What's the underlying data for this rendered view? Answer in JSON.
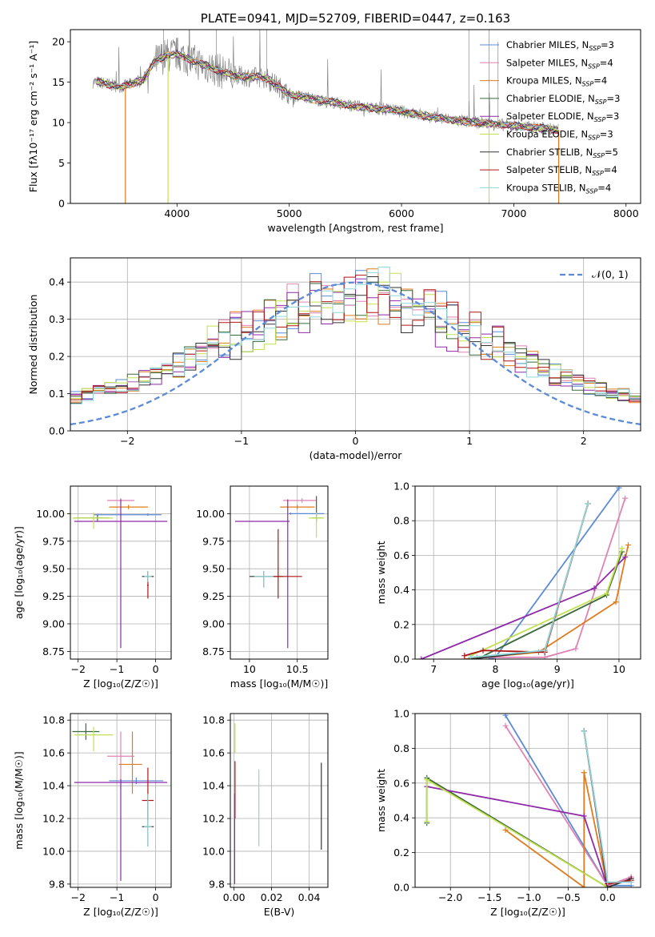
{
  "colors": {
    "Chabrier MILES": "#5b8bd6",
    "Salpeter MILES": "#e082b4",
    "Kroupa MILES": "#e07b1f",
    "Chabrier ELODIE": "#3a6a3a",
    "Salpeter ELODIE": "#8e2aa8",
    "Kroupa ELODIE": "#c2e050",
    "Chabrier STELIB": "#333333",
    "Salpeter STELIB": "#b01515",
    "Kroupa STELIB": "#8fd6d8",
    "data": "#888888",
    "normal": "#5b8bd6"
  },
  "chart_data": [
    {
      "type": "line",
      "id": "spectrum",
      "title": "PLATE=0941, MJD=52709, FIBERID=0447, z=0.163",
      "xlabel": "wavelength [Angstrom, rest frame]",
      "ylabel": "Flux [fλ10⁻¹⁷ erg cm⁻² s⁻¹ A⁻¹]",
      "xlim": [
        3050,
        8130
      ],
      "ylim": [
        0,
        21.5
      ],
      "xticks": [
        4000,
        5000,
        6000,
        7000,
        8000
      ],
      "yticks": [
        0,
        5,
        10,
        15,
        20
      ],
      "grid": false,
      "legend_position": "top-right",
      "legend": [
        {
          "name": "Chabrier MILES",
          "sub": "N",
          "subtext": "SSP",
          "tail": "=3"
        },
        {
          "name": "Salpeter MILES",
          "sub": "N",
          "subtext": "SSP",
          "tail": "=4"
        },
        {
          "name": "Kroupa MILES",
          "sub": "N",
          "subtext": "SSP",
          "tail": "=4"
        },
        {
          "name": "Chabrier ELODIE",
          "sub": "N",
          "subtext": "SSP",
          "tail": "=3"
        },
        {
          "name": "Salpeter ELODIE",
          "sub": "N",
          "subtext": "SSP",
          "tail": "=3"
        },
        {
          "name": "Kroupa ELODIE",
          "sub": "N",
          "subtext": "SSP",
          "tail": "=3"
        },
        {
          "name": "Chabrier STELIB",
          "sub": "N",
          "subtext": "SSP",
          "tail": "=5"
        },
        {
          "name": "Salpeter STELIB",
          "sub": "N",
          "subtext": "SSP",
          "tail": "=4"
        },
        {
          "name": "Kroupa STELIB",
          "sub": "N",
          "subtext": "SSP",
          "tail": "=4"
        }
      ],
      "continuum_x": [
        3300,
        3500,
        3700,
        3800,
        3900,
        4000,
        4200,
        4500,
        4800,
        5000,
        5300,
        5600,
        6000,
        6300,
        6600,
        7000,
        7400
      ],
      "continuum_y": [
        15.0,
        14.4,
        15.3,
        17.5,
        18.3,
        18.5,
        17.3,
        15.8,
        15.5,
        13.5,
        12.7,
        12.0,
        11.4,
        10.6,
        10.1,
        9.6,
        9.1
      ],
      "data_range": [
        3250,
        7400
      ],
      "drops": [
        {
          "series": "Kroupa MILES",
          "x": 3540
        },
        {
          "series": "Kroupa ELODIE",
          "x": 3920
        },
        {
          "series": "Kroupa ELODIE",
          "x": 6780
        },
        {
          "series": "Kroupa MILES",
          "x": 7400
        }
      ]
    },
    {
      "type": "histogram",
      "id": "residuals",
      "xlabel": "(data-model)/error",
      "ylabel": "Normed distribution",
      "xlim": [
        -2.5,
        2.5
      ],
      "ylim": [
        0,
        0.465
      ],
      "xticks": [
        -2,
        -1,
        0,
        1,
        2
      ],
      "yticks": [
        0.0,
        0.1,
        0.2,
        0.3,
        0.4
      ],
      "grid": true,
      "legend_position": "top-right",
      "legend": [
        {
          "name": "𝒩(0, 1)"
        }
      ],
      "bin_width": 0.1
    },
    {
      "type": "scatter",
      "id": "age_vs_Z",
      "xlabel": "Z [log₁₀(Z/Z☉)]",
      "ylabel": "age  [log₁₀(age/yr)]",
      "xlim": [
        -2.2,
        0.4
      ],
      "ylim": [
        8.68,
        10.25
      ],
      "xticks": [
        -2,
        -1,
        0
      ],
      "yticks": [
        8.75,
        9.0,
        9.25,
        9.5,
        9.75,
        10.0
      ],
      "grid": true,
      "points": [
        {
          "series": "Chabrier MILES",
          "x": -0.2,
          "y": 9.99,
          "xerr": [
            1.4,
            0.35
          ],
          "yerr": [
            0.01,
            0.01
          ]
        },
        {
          "series": "Salpeter MILES",
          "x": -0.9,
          "y": 10.12,
          "xerr": [
            0.35,
            0.35
          ],
          "yerr": [
            0.02,
            0.02
          ]
        },
        {
          "series": "Kroupa MILES",
          "x": -0.7,
          "y": 10.06,
          "xerr": [
            0.5,
            0.5
          ],
          "yerr": [
            0.02,
            0.02
          ]
        },
        {
          "series": "Chabrier ELODIE",
          "x": -1.5,
          "y": 9.96,
          "xerr": [
            0.6,
            0.3
          ],
          "yerr": [
            0.03,
            0.03
          ]
        },
        {
          "series": "Salpeter ELODIE",
          "x": -0.9,
          "y": 9.93,
          "xerr": [
            1.2,
            1.2
          ],
          "yerr": [
            1.15,
            0.2
          ]
        },
        {
          "series": "Kroupa ELODIE",
          "x": -1.6,
          "y": 9.96,
          "xerr": [
            0.55,
            0.5
          ],
          "yerr": [
            0.1,
            0.05
          ]
        },
        {
          "series": "Chabrier STELIB",
          "x": -0.2,
          "y": 9.43,
          "xerr": [
            0.15,
            0.15
          ],
          "yerr": [
            0.05,
            0.05
          ]
        },
        {
          "series": "Salpeter STELIB",
          "x": -0.2,
          "y": 9.35,
          "xerr": [
            0.02,
            0.02
          ],
          "yerr": [
            0.12,
            0.12
          ]
        },
        {
          "series": "Kroupa STELIB",
          "x": -0.2,
          "y": 9.43,
          "xerr": [
            0.1,
            0.1
          ],
          "yerr": [
            0.05,
            0.05
          ]
        }
      ]
    },
    {
      "type": "scatter",
      "id": "age_vs_mass",
      "xlabel": "mass [log₁₀(M/M☉)]",
      "ylabel": "",
      "xlim": [
        9.8,
        10.82
      ],
      "ylim": [
        8.68,
        10.25
      ],
      "xticks": [
        10.0,
        10.5
      ],
      "yticks": [
        8.75,
        9.0,
        9.25,
        9.5,
        9.75,
        10.0
      ],
      "grid": true,
      "points": [
        {
          "series": "Chabrier MILES",
          "x": 10.43,
          "y": 10.0,
          "xerr": [
            0.02,
            0.35
          ],
          "yerr": [
            0.01,
            0.01
          ]
        },
        {
          "series": "Salpeter MILES",
          "x": 10.55,
          "y": 10.12,
          "xerr": [
            0.2,
            0.15
          ],
          "yerr": [
            0.02,
            0.02
          ]
        },
        {
          "series": "Kroupa MILES",
          "x": 10.5,
          "y": 10.06,
          "xerr": [
            0.18,
            0.18
          ],
          "yerr": [
            0.02,
            0.02
          ]
        },
        {
          "series": "Chabrier ELODIE",
          "x": 10.7,
          "y": 9.96,
          "xerr": [
            0.05,
            0.05
          ],
          "yerr": [
            0.03,
            0.2
          ]
        },
        {
          "series": "Salpeter ELODIE",
          "x": 10.4,
          "y": 9.93,
          "xerr": [
            0.55,
            0.02
          ],
          "yerr": [
            1.15,
            0.2
          ]
        },
        {
          "series": "Kroupa ELODIE",
          "x": 10.7,
          "y": 9.96,
          "xerr": [
            0.08,
            0.08
          ],
          "yerr": [
            0.18,
            0.05
          ]
        },
        {
          "series": "Chabrier STELIB",
          "x": 10.15,
          "y": 9.43,
          "xerr": [
            0.15,
            0.2
          ],
          "yerr": [
            0.1,
            0.05
          ]
        },
        {
          "series": "Salpeter STELIB",
          "x": 10.3,
          "y": 9.43,
          "xerr": [
            0.05,
            0.25
          ],
          "yerr": [
            0.2,
            0.43
          ]
        },
        {
          "series": "Kroupa STELIB",
          "x": 10.15,
          "y": 9.43,
          "xerr": [
            0.1,
            0.1
          ],
          "yerr": [
            0.1,
            0.05
          ]
        }
      ]
    },
    {
      "type": "line",
      "id": "mass_weight_vs_age",
      "xlabel": "age  [log₁₀(age/yr)]",
      "ylabel": "mass weight",
      "xlim": [
        6.7,
        10.35
      ],
      "ylim": [
        0,
        1.0
      ],
      "xticks": [
        7,
        8,
        9,
        10
      ],
      "yticks": [
        0.0,
        0.2,
        0.4,
        0.6,
        0.8,
        1.0
      ],
      "grid": true,
      "series": [
        {
          "name": "Chabrier MILES",
          "x": [
            7.9,
            8.0,
            10.0
          ],
          "y": [
            0.0,
            0.01,
            0.99
          ]
        },
        {
          "name": "Salpeter MILES",
          "x": [
            7.7,
            8.8,
            9.3,
            10.1
          ],
          "y": [
            0.01,
            0.01,
            0.06,
            0.93
          ]
        },
        {
          "name": "Kroupa MILES",
          "x": [
            7.5,
            8.7,
            9.95,
            10.15
          ],
          "y": [
            0.0,
            0.04,
            0.33,
            0.66
          ]
        },
        {
          "name": "Chabrier ELODIE",
          "x": [
            7.7,
            9.8,
            10.05
          ],
          "y": [
            0.0,
            0.37,
            0.62
          ]
        },
        {
          "name": "Salpeter ELODIE",
          "x": [
            6.8,
            9.6,
            10.1
          ],
          "y": [
            0.0,
            0.41,
            0.59
          ]
        },
        {
          "name": "Kroupa ELODIE",
          "x": [
            7.6,
            9.8,
            10.05
          ],
          "y": [
            0.02,
            0.38,
            0.64
          ]
        },
        {
          "name": "Chabrier STELIB",
          "x": [
            7.6,
            8.8,
            9.5
          ],
          "y": [
            0.0,
            0.05,
            0.9
          ]
        },
        {
          "name": "Salpeter STELIB",
          "x": [
            7.5,
            7.8,
            8.8,
            9.5
          ],
          "y": [
            0.02,
            0.05,
            0.04,
            0.9
          ]
        },
        {
          "name": "Kroupa STELIB",
          "x": [
            7.6,
            8.8,
            9.5
          ],
          "y": [
            0.01,
            0.05,
            0.9
          ]
        }
      ]
    },
    {
      "type": "scatter",
      "id": "mass_vs_Z",
      "xlabel": "Z [log₁₀(Z/Z☉)]",
      "ylabel": "mass [log₁₀(M/M☉)]",
      "xlim": [
        -2.2,
        0.4
      ],
      "ylim": [
        9.78,
        10.84
      ],
      "xticks": [
        -2,
        -1,
        0
      ],
      "yticks": [
        9.8,
        10.0,
        10.2,
        10.4,
        10.6,
        10.8
      ],
      "grid": true,
      "points": [
        {
          "series": "Chabrier MILES",
          "x": -0.5,
          "y": 10.43,
          "xerr": [
            0.7,
            0.7
          ],
          "yerr": [
            0.02,
            0.02
          ]
        },
        {
          "series": "Salpeter MILES",
          "x": -0.9,
          "y": 10.58,
          "xerr": [
            0.35,
            0.35
          ],
          "yerr": [
            0.2,
            0.15
          ]
        },
        {
          "series": "Kroupa MILES",
          "x": -0.6,
          "y": 10.53,
          "xerr": [
            0.35,
            0.25
          ],
          "yerr": [
            0.18,
            0.2
          ]
        },
        {
          "series": "Chabrier ELODIE",
          "x": -1.8,
          "y": 10.73,
          "xerr": [
            0.35,
            0.35
          ],
          "yerr": [
            0.05,
            0.05
          ]
        },
        {
          "series": "Salpeter ELODIE",
          "x": -0.9,
          "y": 10.42,
          "xerr": [
            1.2,
            1.2
          ],
          "yerr": [
            0.6,
            0.02
          ]
        },
        {
          "series": "Kroupa ELODIE",
          "x": -1.6,
          "y": 10.71,
          "xerr": [
            0.5,
            0.5
          ],
          "yerr": [
            0.1,
            0.05
          ]
        },
        {
          "series": "Chabrier STELIB",
          "x": -0.2,
          "y": 10.15,
          "xerr": [
            0.15,
            0.15
          ],
          "yerr": [
            0.12,
            0.2
          ]
        },
        {
          "series": "Salpeter STELIB",
          "x": -0.2,
          "y": 10.31,
          "xerr": [
            0.15,
            0.15
          ],
          "yerr": [
            0.12,
            0.2
          ]
        },
        {
          "series": "Kroupa STELIB",
          "x": -0.2,
          "y": 10.15,
          "xerr": [
            0.1,
            0.1
          ],
          "yerr": [
            0.12,
            0.2
          ]
        }
      ]
    },
    {
      "type": "scatter",
      "id": "mass_vs_EBV",
      "xlabel": "E(B-V)",
      "ylabel": "",
      "xlim": [
        -0.002,
        0.05
      ],
      "ylim": [
        9.78,
        10.84
      ],
      "xticks": [
        0.0,
        0.02,
        0.04
      ],
      "yticks": [
        9.8,
        10.0,
        10.2,
        10.4,
        10.6,
        10.8
      ],
      "grid": true,
      "points": [
        {
          "series": "Kroupa ELODIE",
          "x": 0.0005,
          "y": 10.7,
          "xerr": [
            0,
            0
          ],
          "yerr": [
            0.1,
            0.08
          ]
        },
        {
          "series": "Salpeter STELIB",
          "x": 0.0005,
          "y": 10.35,
          "xerr": [
            0,
            0
          ],
          "yerr": [
            0.15,
            0.2
          ]
        },
        {
          "series": "Salpeter ELODIE",
          "x": 0.0003,
          "y": 10.1,
          "xerr": [
            0,
            0
          ],
          "yerr": [
            0.3,
            0.25
          ]
        },
        {
          "series": "Kroupa STELIB",
          "x": 0.0132,
          "y": 10.27,
          "xerr": [
            0,
            0
          ],
          "yerr": [
            0.24,
            0.23
          ]
        },
        {
          "series": "Chabrier STELIB",
          "x": 0.0465,
          "y": 10.27,
          "xerr": [
            0,
            0
          ],
          "yerr": [
            0.26,
            0.27
          ]
        }
      ]
    },
    {
      "type": "line",
      "id": "mass_weight_vs_Z",
      "xlabel": "Z [log₁₀(Z/Z☉)]",
      "ylabel": "mass weight",
      "xlim": [
        -2.45,
        0.42
      ],
      "ylim": [
        0,
        1.0
      ],
      "xticks": [
        -2.0,
        -1.5,
        -1.0,
        -0.5,
        0.0
      ],
      "yticks": [
        0.0,
        0.2,
        0.4,
        0.6,
        0.8,
        1.0
      ],
      "grid": true,
      "series": [
        {
          "name": "Chabrier MILES",
          "x": [
            -1.3,
            0.0,
            0.3
          ],
          "y": [
            0.99,
            0.01,
            0.01
          ]
        },
        {
          "name": "Salpeter MILES",
          "x": [
            -1.3,
            0.0,
            0.3
          ],
          "y": [
            0.93,
            0.01,
            0.06
          ]
        },
        {
          "name": "Kroupa MILES",
          "x": [
            -1.3,
            -0.3,
            -0.3,
            0.0
          ],
          "y": [
            0.33,
            0.0,
            0.66,
            0.0
          ]
        },
        {
          "name": "Chabrier ELODIE",
          "x": [
            -2.3,
            -2.3,
            0.0
          ],
          "y": [
            0.37,
            0.63,
            0.0
          ]
        },
        {
          "name": "Salpeter ELODIE",
          "x": [
            -2.3,
            -0.3,
            0.0
          ],
          "y": [
            0.58,
            0.41,
            0.0
          ]
        },
        {
          "name": "Kroupa ELODIE",
          "x": [
            -2.3,
            -2.3,
            0.0
          ],
          "y": [
            0.38,
            0.62,
            0.0
          ]
        },
        {
          "name": "Chabrier STELIB",
          "x": [
            -0.3,
            0.0,
            0.3
          ],
          "y": [
            0.9,
            0.0,
            0.05
          ]
        },
        {
          "name": "Salpeter STELIB",
          "x": [
            -0.3,
            0.0,
            0.3
          ],
          "y": [
            0.9,
            0.02,
            0.04
          ]
        },
        {
          "name": "Kroupa STELIB",
          "x": [
            -0.3,
            0.0,
            0.3
          ],
          "y": [
            0.9,
            0.03,
            0.03
          ]
        }
      ]
    }
  ]
}
